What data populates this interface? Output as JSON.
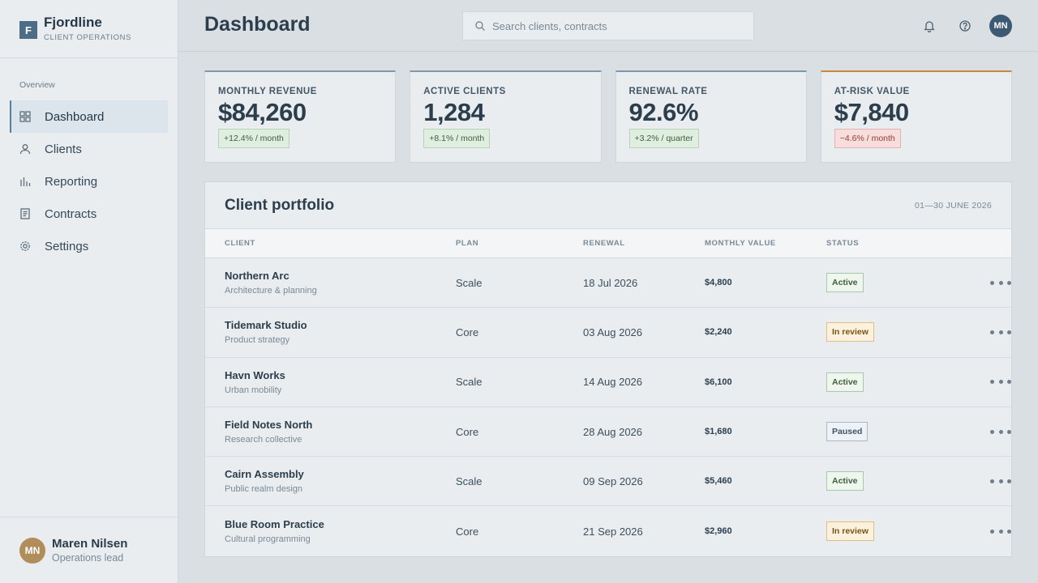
{
  "brand": {
    "mark": "F",
    "name": "Fjordline",
    "subtitle": "CLIENT OPERATIONS"
  },
  "sidebar": {
    "section": "Overview",
    "items": [
      {
        "label": "Dashboard",
        "icon": "grid-icon",
        "active": true
      },
      {
        "label": "Clients",
        "icon": "user-icon",
        "active": false
      },
      {
        "label": "Reporting",
        "icon": "bar-chart-icon",
        "active": false
      },
      {
        "label": "Contracts",
        "icon": "document-icon",
        "active": false
      },
      {
        "label": "Settings",
        "icon": "gear-icon",
        "active": false
      }
    ],
    "user": {
      "initials": "MN",
      "name": "Maren Nilsen",
      "role": "Operations lead"
    }
  },
  "header": {
    "title": "Dashboard",
    "search_placeholder": "Search clients, contracts",
    "avatar_initials": "MN"
  },
  "kpis": [
    {
      "label": "MONTHLY REVENUE",
      "value": "$84,260",
      "delta": "+12.4% / month",
      "trend": "up"
    },
    {
      "label": "ACTIVE CLIENTS",
      "value": "1,284",
      "delta": "+8.1% / month",
      "trend": "up"
    },
    {
      "label": "RENEWAL RATE",
      "value": "92.6%",
      "delta": "+3.2% / quarter",
      "trend": "up"
    },
    {
      "label": "AT-RISK VALUE",
      "value": "$7,840",
      "delta": "−4.6% / month",
      "trend": "down"
    }
  ],
  "portfolio": {
    "title": "Client portfolio",
    "range": "01—30 JUNE 2026",
    "columns": [
      "CLIENT",
      "PLAN",
      "RENEWAL",
      "MONTHLY VALUE",
      "STATUS"
    ],
    "rows": [
      {
        "name": "Northern Arc",
        "sub": "Architecture & planning",
        "plan": "Scale",
        "renewal": "18 Jul 2026",
        "value": "$4,800",
        "status": "Active"
      },
      {
        "name": "Tidemark Studio",
        "sub": "Product strategy",
        "plan": "Core",
        "renewal": "03 Aug 2026",
        "value": "$2,240",
        "status": "In review"
      },
      {
        "name": "Havn Works",
        "sub": "Urban mobility",
        "plan": "Scale",
        "renewal": "14 Aug 2026",
        "value": "$6,100",
        "status": "Active"
      },
      {
        "name": "Field Notes North",
        "sub": "Research collective",
        "plan": "Core",
        "renewal": "28 Aug 2026",
        "value": "$1,680",
        "status": "Paused"
      },
      {
        "name": "Cairn Assembly",
        "sub": "Public realm design",
        "plan": "Scale",
        "renewal": "09 Sep 2026",
        "value": "$5,460",
        "status": "Active"
      },
      {
        "name": "Blue Room Practice",
        "sub": "Cultural programming",
        "plan": "Core",
        "renewal": "21 Sep 2026",
        "value": "$2,960",
        "status": "In review"
      }
    ]
  },
  "colors": {
    "accent": "#4d6d86",
    "warning": "#c58b3a",
    "positive": "#3d5f3d",
    "negative": "#9a3a33"
  }
}
